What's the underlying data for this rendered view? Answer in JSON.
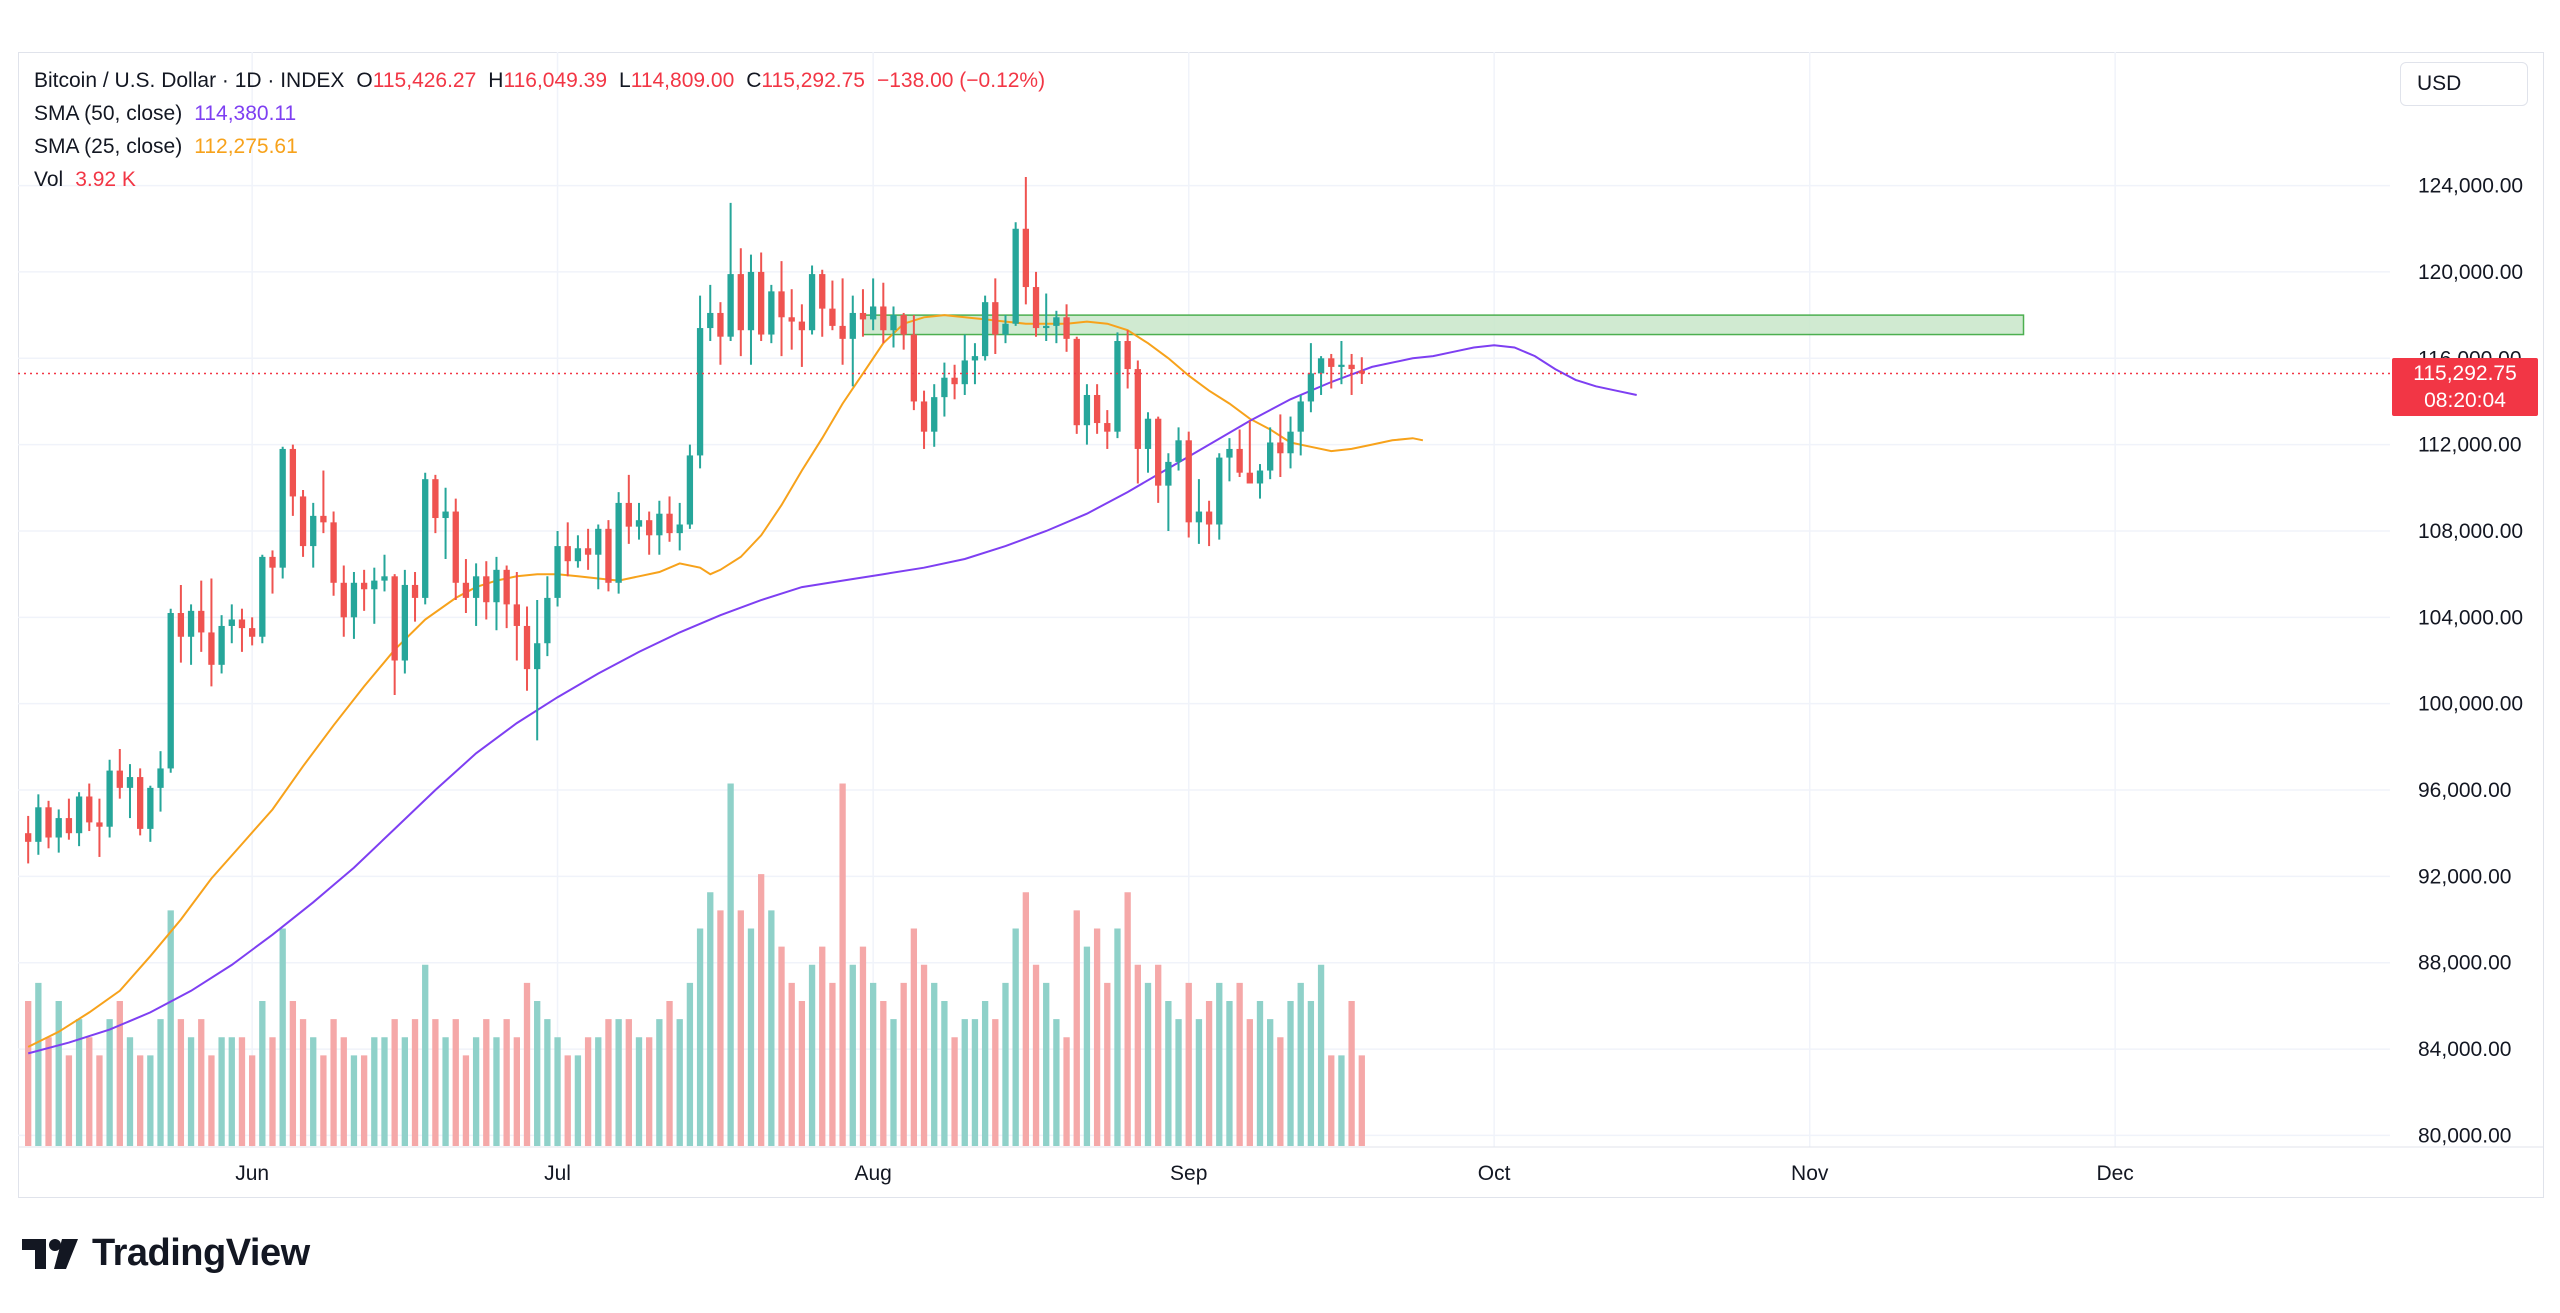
{
  "header": {
    "symbol": "Bitcoin / U.S. Dollar · 1D · INDEX",
    "open_label": "O",
    "open": "115,426.27",
    "high_label": "H",
    "high": "116,049.39",
    "low_label": "L",
    "low": "114,809.00",
    "close_label": "C",
    "close": "115,292.75",
    "change": "−138.00 (−0.12%)"
  },
  "indicators": [
    {
      "label": "SMA (50, close)",
      "value": "114,380.11",
      "color": "#7e3ff2"
    },
    {
      "label": "SMA (25, close)",
      "value": "112,275.61",
      "color": "#f7a21b"
    },
    {
      "label": "Vol",
      "value": "3.92 K",
      "color": "#f23645"
    }
  ],
  "currency": "USD",
  "last_price": {
    "value": "115,292.75",
    "countdown": "08:20:04"
  },
  "brand": "TradingView",
  "colors": {
    "up": "#26a69a",
    "down": "#ef5350",
    "vol_up": "#8fd1c9",
    "vol_down": "#f5a8a8",
    "sma50": "#7e3ff2",
    "sma25": "#f7a21b",
    "zone_fill": "#c8e6c9",
    "zone_stroke": "#4caf50",
    "last_line": "#f23645"
  },
  "chart_data": {
    "type": "candlestick",
    "y_axis": {
      "ticks": [
        "124,000.00",
        "120,000.00",
        "116,000.00",
        "112,000.00",
        "108,000.00",
        "104,000.00",
        "100,000.00",
        "96,000.00",
        "92,000.00",
        "88,000.00",
        "84,000.00",
        "80,000.00"
      ],
      "tick_values": [
        124000,
        120000,
        116000,
        112000,
        108000,
        104000,
        100000,
        96000,
        92000,
        88000,
        84000,
        80000
      ],
      "range": [
        79000,
        126500
      ],
      "side": "right"
    },
    "x_axis": {
      "months": [
        {
          "label": "Jun",
          "day": 22
        },
        {
          "label": "Jul",
          "day": 52
        },
        {
          "label": "Aug",
          "day": 83
        },
        {
          "label": "Sep",
          "day": 114
        },
        {
          "label": "Oct",
          "day": 144
        },
        {
          "label": "Nov",
          "day": 175
        },
        {
          "label": "Dec",
          "day": 205
        }
      ],
      "range": [
        -1,
        232
      ]
    },
    "zone": {
      "x_start_day": 82,
      "x_end_day": 196,
      "y_low": 117100,
      "y_high": 118000
    },
    "volume_ref": 16,
    "ohlc": [
      [
        94000,
        94800,
        92600,
        93600,
        8
      ],
      [
        93600,
        95800,
        93000,
        95200,
        9
      ],
      [
        95200,
        95500,
        93300,
        93800,
        6
      ],
      [
        93800,
        95100,
        93100,
        94700,
        8
      ],
      [
        94700,
        95600,
        93700,
        94000,
        5
      ],
      [
        94000,
        95900,
        93400,
        95700,
        7
      ],
      [
        95700,
        96300,
        94100,
        94500,
        6
      ],
      [
        94500,
        95600,
        92900,
        94300,
        5
      ],
      [
        94300,
        97400,
        93800,
        96900,
        7
      ],
      [
        96900,
        97900,
        95600,
        96100,
        8
      ],
      [
        96100,
        97200,
        94700,
        96600,
        6
      ],
      [
        96600,
        97000,
        93900,
        94200,
        5
      ],
      [
        94200,
        96200,
        93600,
        96100,
        5
      ],
      [
        96100,
        97800,
        95000,
        97000,
        7
      ],
      [
        97000,
        104400,
        96800,
        104200,
        13
      ],
      [
        104200,
        105500,
        101900,
        103100,
        7
      ],
      [
        103100,
        104600,
        101800,
        104300,
        6
      ],
      [
        104300,
        105700,
        102400,
        103300,
        7
      ],
      [
        103300,
        105800,
        100800,
        101800,
        5
      ],
      [
        101800,
        104100,
        101400,
        103600,
        6
      ],
      [
        103600,
        104600,
        102800,
        103900,
        6
      ],
      [
        103900,
        104400,
        102400,
        103500,
        6
      ],
      [
        103500,
        104000,
        102700,
        103100,
        5
      ],
      [
        103100,
        106900,
        102800,
        106800,
        8
      ],
      [
        106800,
        107100,
        105100,
        106300,
        6
      ],
      [
        106300,
        111900,
        105800,
        111800,
        12
      ],
      [
        111800,
        112000,
        108700,
        109600,
        8
      ],
      [
        109600,
        109900,
        106800,
        107300,
        7
      ],
      [
        107300,
        109300,
        106300,
        108700,
        6
      ],
      [
        108700,
        110800,
        107900,
        108400,
        5
      ],
      [
        108400,
        108900,
        105000,
        105600,
        7
      ],
      [
        105600,
        106400,
        103100,
        104000,
        6
      ],
      [
        104000,
        106100,
        103000,
        105600,
        5
      ],
      [
        105600,
        106200,
        104300,
        105300,
        5
      ],
      [
        105300,
        106300,
        103700,
        105700,
        6
      ],
      [
        105700,
        106900,
        105200,
        105900,
        6
      ],
      [
        105900,
        106000,
        100400,
        102000,
        7
      ],
      [
        102000,
        106200,
        101400,
        105500,
        6
      ],
      [
        105500,
        106100,
        103800,
        104900,
        7
      ],
      [
        104900,
        110700,
        104600,
        110400,
        10
      ],
      [
        110400,
        110600,
        107900,
        108600,
        7
      ],
      [
        108600,
        110000,
        106700,
        108900,
        6
      ],
      [
        108900,
        109500,
        104800,
        105600,
        7
      ],
      [
        105600,
        106700,
        104200,
        104900,
        5
      ],
      [
        104900,
        106500,
        103600,
        105900,
        6
      ],
      [
        105900,
        106600,
        103900,
        104700,
        7
      ],
      [
        104700,
        106800,
        103400,
        106200,
        6
      ],
      [
        106200,
        106400,
        103500,
        104600,
        7
      ],
      [
        104600,
        106100,
        102000,
        103600,
        6
      ],
      [
        103600,
        104500,
        100600,
        101600,
        9
      ],
      [
        101600,
        104800,
        98300,
        102800,
        8
      ],
      [
        102800,
        105900,
        102200,
        104900,
        7
      ],
      [
        104900,
        108000,
        104500,
        107300,
        6
      ],
      [
        107300,
        108400,
        105900,
        106600,
        5
      ],
      [
        106600,
        107800,
        106300,
        107200,
        5
      ],
      [
        107200,
        108100,
        106200,
        106900,
        6
      ],
      [
        106900,
        108300,
        105300,
        108100,
        6
      ],
      [
        108100,
        108500,
        105200,
        105600,
        7
      ],
      [
        105600,
        109800,
        105100,
        109300,
        7
      ],
      [
        109300,
        110600,
        107400,
        108200,
        7
      ],
      [
        108200,
        109300,
        107600,
        108500,
        6
      ],
      [
        108500,
        108900,
        106900,
        107800,
        6
      ],
      [
        107800,
        109400,
        106900,
        108800,
        7
      ],
      [
        108800,
        109600,
        107500,
        107900,
        8
      ],
      [
        107900,
        109300,
        107100,
        108300,
        7
      ],
      [
        108300,
        112000,
        108100,
        111500,
        9
      ],
      [
        111500,
        118900,
        110900,
        117400,
        12
      ],
      [
        117400,
        119400,
        116800,
        118100,
        14
      ],
      [
        118100,
        118600,
        115700,
        117000,
        13
      ],
      [
        117000,
        123200,
        116800,
        119900,
        20
      ],
      [
        119900,
        121100,
        116100,
        117300,
        13
      ],
      [
        117300,
        120800,
        115700,
        120000,
        12
      ],
      [
        120000,
        120900,
        116800,
        117100,
        15
      ],
      [
        117100,
        119400,
        116700,
        119100,
        13
      ],
      [
        119100,
        120500,
        116100,
        117900,
        11
      ],
      [
        117900,
        119200,
        116400,
        117700,
        9
      ],
      [
        117700,
        118500,
        115600,
        117300,
        8
      ],
      [
        117300,
        120300,
        117100,
        119900,
        10
      ],
      [
        119900,
        120100,
        117000,
        118300,
        11
      ],
      [
        118300,
        119600,
        117300,
        117500,
        9
      ],
      [
        117500,
        119700,
        115700,
        116900,
        20
      ],
      [
        116900,
        118900,
        114700,
        118100,
        10
      ],
      [
        118100,
        119200,
        117000,
        117800,
        11
      ],
      [
        117800,
        119700,
        117300,
        118400,
        9
      ],
      [
        118400,
        119500,
        116700,
        117300,
        8
      ],
      [
        117300,
        118400,
        116500,
        118000,
        7
      ],
      [
        118000,
        118100,
        116400,
        117100,
        9
      ],
      [
        117100,
        118000,
        113600,
        114000,
        12
      ],
      [
        114000,
        114500,
        111800,
        112600,
        10
      ],
      [
        112600,
        114800,
        111900,
        114200,
        9
      ],
      [
        114200,
        115800,
        113300,
        115100,
        8
      ],
      [
        115100,
        115700,
        114100,
        114800,
        6
      ],
      [
        114800,
        117100,
        114300,
        115900,
        7
      ],
      [
        115900,
        116700,
        114800,
        116100,
        7
      ],
      [
        116100,
        118900,
        115900,
        118600,
        8
      ],
      [
        118600,
        119700,
        116200,
        117100,
        7
      ],
      [
        117100,
        118000,
        116700,
        117600,
        9
      ],
      [
        117600,
        122300,
        117500,
        122000,
        12
      ],
      [
        122000,
        124400,
        118500,
        119300,
        14
      ],
      [
        119300,
        120000,
        117000,
        117400,
        10
      ],
      [
        117400,
        119000,
        116800,
        117500,
        9
      ],
      [
        117500,
        118200,
        116700,
        117900,
        7
      ],
      [
        117900,
        118500,
        116300,
        116900,
        6
      ],
      [
        116900,
        117000,
        112500,
        112900,
        13
      ],
      [
        112900,
        114800,
        112000,
        114300,
        11
      ],
      [
        114300,
        114800,
        112500,
        113000,
        12
      ],
      [
        113000,
        113600,
        111800,
        112600,
        9
      ],
      [
        112600,
        117200,
        112300,
        116800,
        12
      ],
      [
        116800,
        117300,
        114600,
        115500,
        14
      ],
      [
        115500,
        115900,
        110200,
        111800,
        10
      ],
      [
        111800,
        113500,
        110700,
        113200,
        9
      ],
      [
        113200,
        113300,
        109300,
        110100,
        10
      ],
      [
        110100,
        111600,
        108000,
        111200,
        8
      ],
      [
        111200,
        112800,
        110800,
        112200,
        7
      ],
      [
        112200,
        112600,
        107700,
        108400,
        9
      ],
      [
        108400,
        110400,
        107400,
        108900,
        7
      ],
      [
        108900,
        109400,
        107300,
        108300,
        8
      ],
      [
        108300,
        111600,
        107600,
        111400,
        9
      ],
      [
        111400,
        112300,
        110300,
        111800,
        8
      ],
      [
        111800,
        112700,
        110500,
        110700,
        9
      ],
      [
        110700,
        113100,
        110200,
        110200,
        7
      ],
      [
        110200,
        111100,
        109500,
        110800,
        8
      ],
      [
        110800,
        112800,
        110400,
        112100,
        7
      ],
      [
        112100,
        113400,
        110500,
        111600,
        6
      ],
      [
        111600,
        113300,
        110900,
        112600,
        8
      ],
      [
        112600,
        114300,
        111500,
        114000,
        9
      ],
      [
        114000,
        116700,
        113500,
        115300,
        8
      ],
      [
        115300,
        116100,
        114300,
        116000,
        10
      ],
      [
        116000,
        116200,
        114600,
        115600,
        5
      ],
      [
        115600,
        116800,
        114800,
        115700,
        5
      ],
      [
        115700,
        116200,
        114300,
        115500,
        8
      ],
      [
        115426,
        116049,
        114809,
        115293,
        5
      ]
    ],
    "sma25": [
      [
        0,
        84100
      ],
      [
        3,
        84800
      ],
      [
        6,
        85700
      ],
      [
        9,
        86700
      ],
      [
        12,
        88300
      ],
      [
        15,
        90000
      ],
      [
        18,
        91900
      ],
      [
        21,
        93500
      ],
      [
        24,
        95100
      ],
      [
        27,
        97100
      ],
      [
        30,
        99000
      ],
      [
        33,
        100800
      ],
      [
        36,
        102500
      ],
      [
        39,
        103900
      ],
      [
        42,
        104900
      ],
      [
        44,
        105400
      ],
      [
        46,
        105700
      ],
      [
        48,
        105900
      ],
      [
        50,
        106000
      ],
      [
        52,
        106000
      ],
      [
        54,
        105900
      ],
      [
        56,
        105800
      ],
      [
        58,
        105700
      ],
      [
        60,
        105900
      ],
      [
        62,
        106100
      ],
      [
        64,
        106500
      ],
      [
        66,
        106300
      ],
      [
        67,
        106000
      ],
      [
        68,
        106200
      ],
      [
        70,
        106800
      ],
      [
        72,
        107800
      ],
      [
        74,
        109200
      ],
      [
        76,
        110800
      ],
      [
        78,
        112300
      ],
      [
        80,
        113900
      ],
      [
        82,
        115300
      ],
      [
        84,
        116700
      ],
      [
        86,
        117600
      ],
      [
        88,
        117900
      ],
      [
        90,
        118000
      ],
      [
        92,
        117900
      ],
      [
        94,
        117800
      ],
      [
        96,
        117700
      ],
      [
        98,
        117600
      ],
      [
        100,
        117600
      ],
      [
        102,
        117600
      ],
      [
        104,
        117700
      ],
      [
        106,
        117600
      ],
      [
        108,
        117300
      ],
      [
        110,
        116700
      ],
      [
        112,
        116000
      ],
      [
        114,
        115200
      ],
      [
        116,
        114500
      ],
      [
        118,
        113900
      ],
      [
        120,
        113200
      ],
      [
        122,
        112700
      ],
      [
        124,
        112100
      ],
      [
        126,
        111900
      ],
      [
        128,
        111700
      ],
      [
        130,
        111800
      ],
      [
        132,
        112000
      ],
      [
        134,
        112200
      ],
      [
        136,
        112300
      ],
      [
        137,
        112200
      ]
    ],
    "sma50": [
      [
        0,
        83800
      ],
      [
        4,
        84300
      ],
      [
        8,
        84900
      ],
      [
        12,
        85700
      ],
      [
        16,
        86700
      ],
      [
        20,
        87900
      ],
      [
        24,
        89300
      ],
      [
        28,
        90800
      ],
      [
        32,
        92400
      ],
      [
        36,
        94200
      ],
      [
        40,
        96000
      ],
      [
        44,
        97700
      ],
      [
        48,
        99100
      ],
      [
        52,
        100300
      ],
      [
        56,
        101400
      ],
      [
        60,
        102400
      ],
      [
        64,
        103300
      ],
      [
        68,
        104100
      ],
      [
        72,
        104800
      ],
      [
        76,
        105400
      ],
      [
        80,
        105700
      ],
      [
        84,
        106000
      ],
      [
        88,
        106300
      ],
      [
        92,
        106700
      ],
      [
        96,
        107300
      ],
      [
        100,
        108000
      ],
      [
        104,
        108800
      ],
      [
        108,
        109800
      ],
      [
        112,
        110900
      ],
      [
        116,
        112000
      ],
      [
        120,
        113100
      ],
      [
        124,
        114100
      ],
      [
        128,
        114900
      ],
      [
        132,
        115600
      ],
      [
        136,
        116000
      ],
      [
        138,
        116100
      ],
      [
        140,
        116300
      ],
      [
        142,
        116500
      ],
      [
        144,
        116600
      ],
      [
        146,
        116500
      ],
      [
        148,
        116100
      ],
      [
        150,
        115500
      ],
      [
        152,
        115000
      ],
      [
        154,
        114700
      ],
      [
        156,
        114500
      ],
      [
        158,
        114300
      ]
    ]
  }
}
